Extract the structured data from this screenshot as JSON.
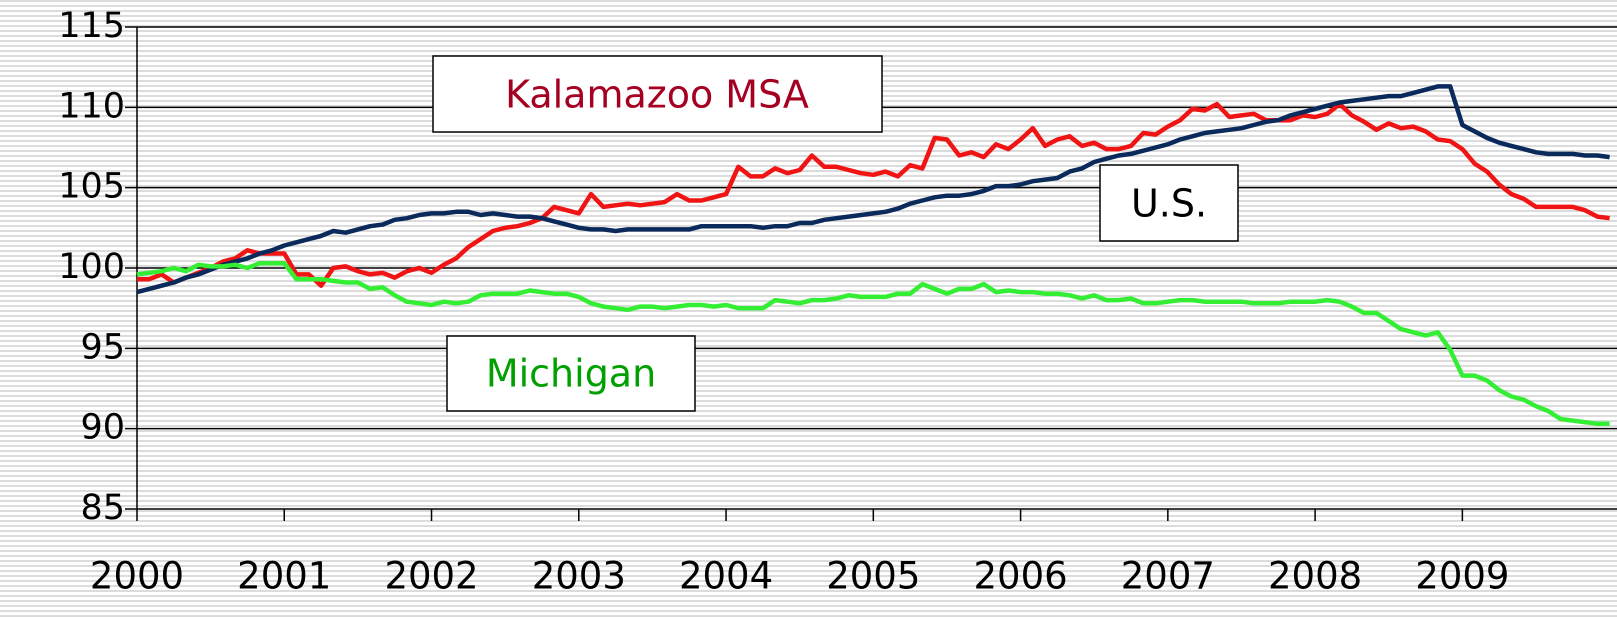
{
  "chart_data": {
    "type": "line",
    "x": [
      2000,
      2000.083,
      2000.167,
      2000.25,
      2000.333,
      2000.417,
      2000.5,
      2000.583,
      2000.667,
      2000.75,
      2000.833,
      2000.917,
      2001,
      2001.083,
      2001.167,
      2001.25,
      2001.333,
      2001.417,
      2001.5,
      2001.583,
      2001.667,
      2001.75,
      2001.833,
      2001.917,
      2002,
      2002.083,
      2002.167,
      2002.25,
      2002.333,
      2002.417,
      2002.5,
      2002.583,
      2002.667,
      2002.75,
      2002.833,
      2002.917,
      2003,
      2003.083,
      2003.167,
      2003.25,
      2003.333,
      2003.417,
      2003.5,
      2003.583,
      2003.667,
      2003.75,
      2003.833,
      2003.917,
      2004,
      2004.083,
      2004.167,
      2004.25,
      2004.333,
      2004.417,
      2004.5,
      2004.583,
      2004.667,
      2004.75,
      2004.833,
      2004.917,
      2005,
      2005.083,
      2005.167,
      2005.25,
      2005.333,
      2005.417,
      2005.5,
      2005.583,
      2005.667,
      2005.75,
      2005.833,
      2005.917,
      2006,
      2006.083,
      2006.167,
      2006.25,
      2006.333,
      2006.417,
      2006.5,
      2006.583,
      2006.667,
      2006.75,
      2006.833,
      2006.917,
      2007,
      2007.083,
      2007.167,
      2007.25,
      2007.333,
      2007.417,
      2007.5,
      2007.583,
      2007.667,
      2007.75,
      2007.833,
      2007.917,
      2008,
      2008.083,
      2008.167,
      2008.25,
      2008.333,
      2008.417,
      2008.5,
      2008.583,
      2008.667,
      2008.75,
      2008.833,
      2008.917,
      2009,
      2009.083,
      2009.167,
      2009.25,
      2009.333,
      2009.417,
      2009.5,
      2009.583,
      2009.667,
      2009.75,
      2009.833,
      2009.917,
      2010
    ],
    "series": [
      {
        "name": "Kalamazoo MSA",
        "color": "#f01414",
        "values": [
          99.3,
          99.3,
          99.6,
          99.1,
          99.4,
          99.7,
          100,
          100.4,
          100.6,
          101.1,
          100.9,
          100.9,
          100.9,
          99.6,
          99.6,
          98.9,
          100,
          100.1,
          99.8,
          99.6,
          99.7,
          99.4,
          99.8,
          100,
          99.7,
          100.2,
          100.6,
          101.3,
          101.8,
          102.3,
          102.5,
          102.6,
          102.8,
          103.1,
          103.8,
          103.6,
          103.4,
          104.6,
          103.8,
          103.9,
          104,
          103.9,
          104,
          104.1,
          104.6,
          104.2,
          104.2,
          104.4,
          104.6,
          106.3,
          105.7,
          105.7,
          106.2,
          105.9,
          106.1,
          107,
          106.3,
          106.3,
          106.1,
          105.9,
          105.8,
          106,
          105.7,
          106.4,
          106.2,
          108.1,
          108,
          107,
          107.2,
          106.9,
          107.7,
          107.4,
          108,
          108.7,
          107.6,
          108,
          108.2,
          107.6,
          107.8,
          107.4,
          107.4,
          107.6,
          108.4,
          108.3,
          108.8,
          109.2,
          109.9,
          109.8,
          110.2,
          109.4,
          109.5,
          109.6,
          109.2,
          109.2,
          109.2,
          109.5,
          109.4,
          109.6,
          110.2,
          109.5,
          109.1,
          108.6,
          109,
          108.7,
          108.8,
          108.5,
          108,
          107.9,
          107.4,
          106.5,
          106,
          105.2,
          104.6,
          104.3,
          103.8,
          103.8,
          103.8,
          103.8,
          103.6,
          103.2,
          103.1
        ]
      },
      {
        "name": "U.S.",
        "color": "#0b2a5c",
        "values": [
          98.5,
          98.7,
          98.9,
          99.1,
          99.4,
          99.6,
          99.9,
          100.2,
          100.4,
          100.6,
          100.9,
          101.1,
          101.4,
          101.6,
          101.8,
          102,
          102.3,
          102.2,
          102.4,
          102.6,
          102.7,
          103,
          103.1,
          103.3,
          103.4,
          103.4,
          103.5,
          103.5,
          103.3,
          103.4,
          103.3,
          103.2,
          103.2,
          103.1,
          102.9,
          102.7,
          102.5,
          102.4,
          102.4,
          102.3,
          102.4,
          102.4,
          102.4,
          102.4,
          102.4,
          102.4,
          102.6,
          102.6,
          102.6,
          102.6,
          102.6,
          102.5,
          102.6,
          102.6,
          102.8,
          102.8,
          103,
          103.1,
          103.2,
          103.3,
          103.4,
          103.5,
          103.7,
          104,
          104.2,
          104.4,
          104.5,
          104.5,
          104.6,
          104.8,
          105.1,
          105.1,
          105.2,
          105.4,
          105.5,
          105.6,
          106,
          106.2,
          106.6,
          106.8,
          107,
          107.1,
          107.3,
          107.5,
          107.7,
          108,
          108.2,
          108.4,
          108.5,
          108.6,
          108.7,
          108.9,
          109.1,
          109.2,
          109.5,
          109.7,
          109.9,
          110.1,
          110.3,
          110.4,
          110.5,
          110.6,
          110.7,
          110.7,
          110.9,
          111.1,
          111.3,
          111.3,
          108.9,
          108.5,
          108.1,
          107.8,
          107.6,
          107.4,
          107.2,
          107.1,
          107.1,
          107.1,
          107,
          107,
          106.9
        ]
      },
      {
        "name": "Michigan",
        "color": "#33ee33",
        "values": [
          99.6,
          99.7,
          99.8,
          100,
          99.8,
          100.2,
          100.1,
          100.1,
          100.2,
          100,
          100.3,
          100.3,
          100.3,
          99.3,
          99.3,
          99.3,
          99.2,
          99.1,
          99.1,
          98.7,
          98.8,
          98.3,
          97.9,
          97.8,
          97.7,
          97.9,
          97.8,
          97.9,
          98.3,
          98.4,
          98.4,
          98.4,
          98.6,
          98.5,
          98.4,
          98.4,
          98.2,
          97.8,
          97.6,
          97.5,
          97.4,
          97.6,
          97.6,
          97.5,
          97.6,
          97.7,
          97.7,
          97.6,
          97.7,
          97.5,
          97.5,
          97.5,
          98,
          97.9,
          97.8,
          98,
          98,
          98.1,
          98.3,
          98.2,
          98.2,
          98.2,
          98.4,
          98.4,
          99,
          98.7,
          98.4,
          98.7,
          98.7,
          99,
          98.5,
          98.6,
          98.5,
          98.5,
          98.4,
          98.4,
          98.3,
          98.1,
          98.3,
          98,
          98,
          98.1,
          97.8,
          97.8,
          97.9,
          98,
          98,
          97.9,
          97.9,
          97.9,
          97.9,
          97.8,
          97.8,
          97.8,
          97.9,
          97.9,
          97.9,
          98,
          97.9,
          97.6,
          97.2,
          97.2,
          96.7,
          96.2,
          96,
          95.8,
          96,
          94.9,
          93.3,
          93.3,
          93,
          92.4,
          92,
          91.8,
          91.4,
          91.1,
          90.6,
          90.5,
          90.4,
          90.3,
          90.3
        ]
      }
    ],
    "annotations": [
      {
        "text": "Kalamazoo MSA",
        "color": "#a50021"
      },
      {
        "text": "U.S.",
        "color": "#000000"
      },
      {
        "text": "Michigan",
        "color": "#00a000"
      }
    ],
    "xlim": [
      2000,
      2010.05
    ],
    "xticks": [
      2000,
      2001,
      2002,
      2003,
      2004,
      2005,
      2006,
      2007,
      2008,
      2009
    ],
    "ylim": [
      85,
      115
    ],
    "yticks": [
      85,
      90,
      95,
      100,
      105,
      110,
      115
    ],
    "grid": true
  }
}
